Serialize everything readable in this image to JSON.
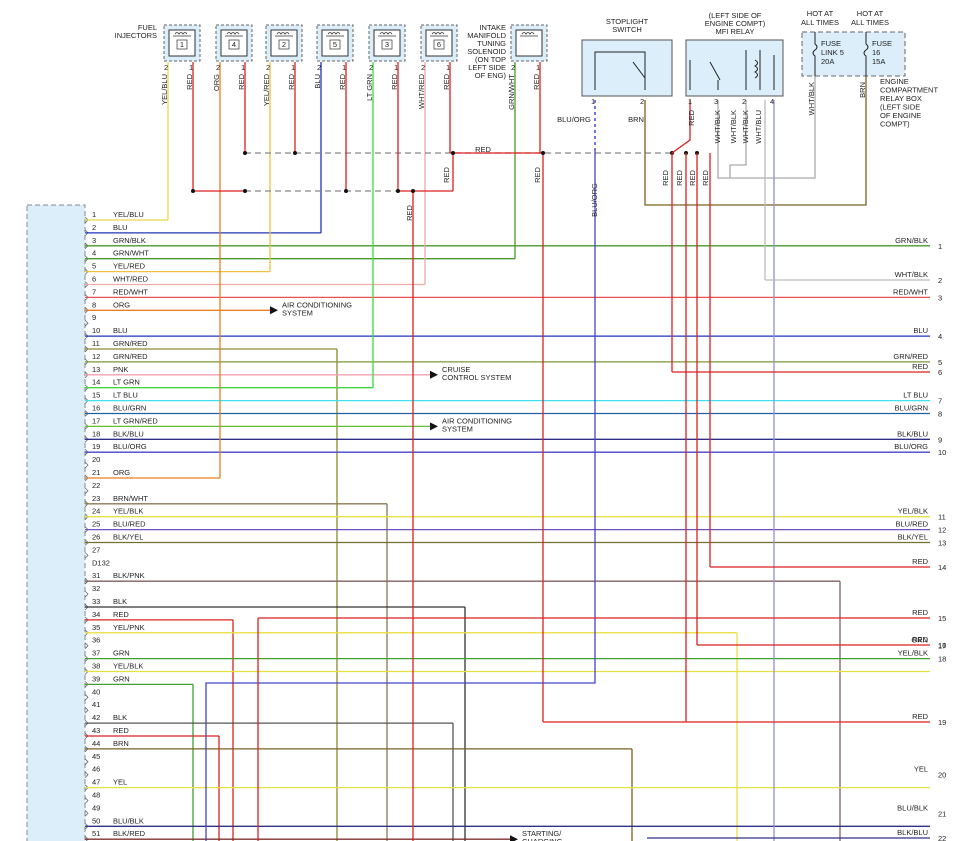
{
  "fuel_injectors_label": [
    "FUEL",
    "INJECTORS"
  ],
  "injectors": [
    {
      "number": "1",
      "pins": [
        "2",
        "1"
      ],
      "wires": [
        "YEL/BLU",
        "RED"
      ]
    },
    {
      "number": "4",
      "pins": [
        "2",
        "1"
      ],
      "wires": [
        "ORG",
        "RED"
      ]
    },
    {
      "number": "2",
      "pins": [
        "2",
        "1"
      ],
      "wires": [
        "YEL/RED",
        "RED"
      ]
    },
    {
      "number": "5",
      "pins": [
        "2",
        "1"
      ],
      "wires": [
        "BLU",
        "RED"
      ]
    },
    {
      "number": "3",
      "pins": [
        "2",
        "1"
      ],
      "wires": [
        "LT GRN",
        "RED"
      ]
    },
    {
      "number": "6",
      "pins": [
        "2",
        "1"
      ],
      "wires": [
        "WHT/RED",
        "RED"
      ]
    }
  ],
  "solenoid": {
    "label": [
      "INTAKE",
      "MANIFOLD",
      "TUNING",
      "SOLENOID",
      "(ON TOP",
      "LEFT SIDE",
      "OF ENG)"
    ],
    "pins": [
      "2",
      "1"
    ],
    "wires": [
      "GRN/WHT",
      "RED"
    ]
  },
  "stoplight_switch": {
    "label": [
      "STOPLIGHT",
      "SWITCH"
    ],
    "pins": [
      "1",
      "2"
    ],
    "wires": [
      "BLU/ORG",
      "BRN"
    ]
  },
  "mfi_relay": {
    "label": [
      "(LEFT SIDE OF",
      "ENGINE COMPT)",
      "MFI RELAY"
    ],
    "pins": [
      "1",
      "3",
      "2",
      "4"
    ],
    "wires": [
      "RED",
      "WHT/BLK",
      "WHT/BLK",
      "WHT/BLK",
      "WHT/BLU"
    ]
  },
  "relay_box": {
    "hot": [
      [
        "HOT AT",
        "ALL TIMES"
      ],
      [
        "HOT AT",
        "ALL TIMES"
      ]
    ],
    "fuses": [
      [
        "FUSE",
        "LINK 5",
        "20A"
      ],
      [
        "FUSE",
        "16",
        "15A"
      ]
    ],
    "wires": [
      "WHT/BLK",
      "BRN"
    ],
    "label": [
      "ENGINE",
      "COMPARTMENT",
      "RELAY BOX",
      "(LEFT SIDE",
      "OF ENGINE",
      "COMPT)"
    ]
  },
  "splice_labels": [
    "RED",
    "RED",
    "RED",
    "RED",
    "BLU/ORG",
    "RED",
    "RED",
    "RED",
    "RED"
  ],
  "connector": {
    "name": "D132",
    "rows": [
      {
        "pin": "1",
        "wire": "YEL/BLU"
      },
      {
        "pin": "2",
        "wire": "BLU"
      },
      {
        "pin": "3",
        "wire": "GRN/BLK"
      },
      {
        "pin": "4",
        "wire": "GRN/WHT"
      },
      {
        "pin": "5",
        "wire": "YEL/RED"
      },
      {
        "pin": "6",
        "wire": "WHT/RED"
      },
      {
        "pin": "7",
        "wire": "RED/WHT"
      },
      {
        "pin": "8",
        "wire": "ORG"
      },
      {
        "pin": "9"
      },
      {
        "pin": "10",
        "wire": "BLU"
      },
      {
        "pin": "11",
        "wire": "GRN/RED"
      },
      {
        "pin": "12",
        "wire": "GRN/RED"
      },
      {
        "pin": "13",
        "wire": "PNK"
      },
      {
        "pin": "14",
        "wire": "LT GRN"
      },
      {
        "pin": "15",
        "wire": "LT BLU"
      },
      {
        "pin": "16",
        "wire": "BLU/GRN"
      },
      {
        "pin": "17",
        "wire": "LT GRN/RED"
      },
      {
        "pin": "18",
        "wire": "BLK/BLU"
      },
      {
        "pin": "19",
        "wire": "BLU/ORG"
      },
      {
        "pin": "20"
      },
      {
        "pin": "21",
        "wire": "ORG"
      },
      {
        "pin": "22"
      },
      {
        "pin": "23",
        "wire": "BRN/WHT"
      },
      {
        "pin": "24",
        "wire": "YEL/BLK"
      },
      {
        "pin": "25",
        "wire": "BLU/RED"
      },
      {
        "pin": "26",
        "wire": "BLK/YEL"
      },
      {
        "pin": "27"
      },
      {
        "pin": "31",
        "wire": "BLK/PNK"
      },
      {
        "pin": "32"
      },
      {
        "pin": "33",
        "wire": "BLK"
      },
      {
        "pin": "34",
        "wire": "RED"
      },
      {
        "pin": "35",
        "wire": "YEL/PNK"
      },
      {
        "pin": "36"
      },
      {
        "pin": "37",
        "wire": "GRN"
      },
      {
        "pin": "38",
        "wire": "YEL/BLK"
      },
      {
        "pin": "39",
        "wire": "GRN"
      },
      {
        "pin": "40"
      },
      {
        "pin": "41"
      },
      {
        "pin": "42",
        "wire": "BLK"
      },
      {
        "pin": "43",
        "wire": "RED"
      },
      {
        "pin": "44",
        "wire": "BRN"
      },
      {
        "pin": "45"
      },
      {
        "pin": "46"
      },
      {
        "pin": "47",
        "wire": "YEL"
      },
      {
        "pin": "48"
      },
      {
        "pin": "49"
      },
      {
        "pin": "50",
        "wire": "BLU/BLK"
      },
      {
        "pin": "51",
        "wire": "BLK/RED"
      }
    ]
  },
  "destinations": [
    {
      "lines": [
        "AIR CONDITIONING",
        "SYSTEM"
      ]
    },
    {
      "lines": [
        "CRUISE",
        "CONTROL SYSTEM"
      ]
    },
    {
      "lines": [
        "AIR CONDITIONING",
        "SYSTEM"
      ]
    },
    {
      "lines": [
        "STARTING/",
        "CHARGING"
      ]
    }
  ],
  "right_wires": [
    {
      "wire": "GRN/BLK",
      "number": "1"
    },
    {
      "wire": "WHT/BLK",
      "number": "2"
    },
    {
      "wire": "RED/WHT",
      "number": "3"
    },
    {
      "wire": "BLU",
      "number": "4"
    },
    {
      "wire": "GRN/RED",
      "number": "5"
    },
    {
      "wire": "RED",
      "number": "6"
    },
    {
      "wire": "LT BLU",
      "number": "7"
    },
    {
      "wire": "BLU/GRN",
      "number": "8"
    },
    {
      "wire": "BLK/BLU",
      "number": "9"
    },
    {
      "wire": "BLU/ORG",
      "number": "10"
    },
    {
      "wire": "YEL/BLK",
      "number": "11"
    },
    {
      "wire": "BLU/RED",
      "number": "12"
    },
    {
      "wire": "BLK/YEL",
      "number": "13"
    },
    {
      "wire": "RED",
      "number": "14"
    },
    {
      "wire": "RED",
      "number": "15"
    },
    {
      "wire": "RED",
      "number": "16"
    },
    {
      "wire": "GRN",
      "number": "17"
    },
    {
      "wire": "YEL/BLK",
      "number": "18"
    },
    {
      "wire": "RED",
      "number": "19"
    },
    {
      "wire": "YEL",
      "number": "20"
    },
    {
      "wire": "BLU/BLK",
      "number": "21"
    },
    {
      "wire": "BLK/BLU",
      "number": "22"
    }
  ]
}
